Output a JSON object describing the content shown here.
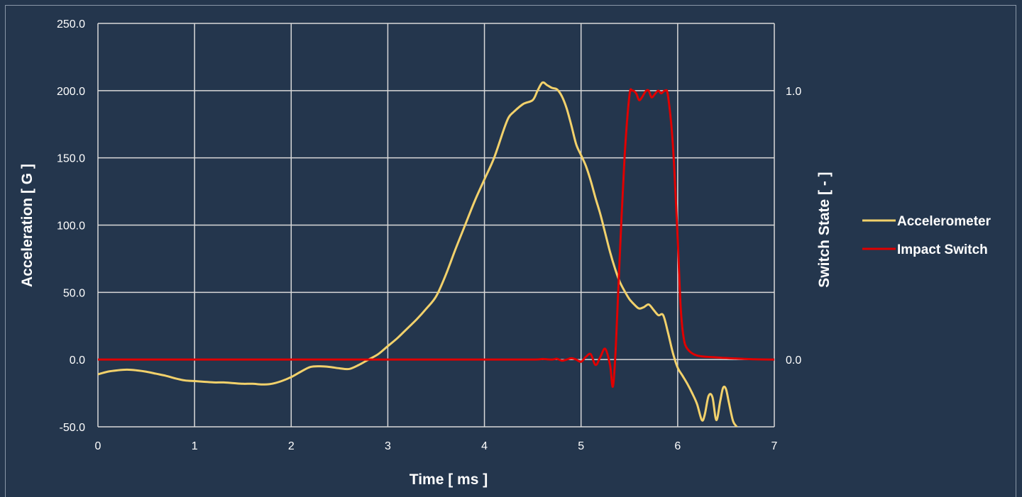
{
  "colors": {
    "background": "#24364d",
    "grid": "#d9d9d9",
    "text": "#ffffff",
    "accelerometer": "#f2d16b",
    "impact_switch": "#e00000"
  },
  "chart_data": {
    "type": "line",
    "title": "",
    "xlabel": "Time [ ms ]",
    "ylabel": "Acceleration [ G ]",
    "y2label": "Switch State [ - ]",
    "xlim": [
      0,
      7
    ],
    "ylim": [
      -50,
      250
    ],
    "y2lim": [
      0,
      1
    ],
    "x_ticks": [
      0,
      1,
      2,
      3,
      4,
      5,
      6,
      7
    ],
    "x_tick_labels": [
      "0",
      "1",
      "2",
      "3",
      "4",
      "5",
      "6",
      "7"
    ],
    "y_ticks": [
      -50,
      0,
      50,
      100,
      150,
      200,
      250
    ],
    "y_tick_labels": [
      "-50.0",
      "0.0",
      "50.0",
      "100.0",
      "150.0",
      "200.0",
      "250.0"
    ],
    "y2_ticks": [
      0,
      1
    ],
    "y2_tick_labels": [
      "0.0",
      "1.0"
    ],
    "grid": true,
    "legend_position": "right",
    "series": [
      {
        "name": "Accelerometer",
        "axis": "left",
        "x": [
          0,
          0.1,
          0.2,
          0.3,
          0.4,
          0.5,
          0.6,
          0.7,
          0.8,
          0.9,
          1.0,
          1.1,
          1.2,
          1.3,
          1.4,
          1.5,
          1.6,
          1.7,
          1.8,
          1.9,
          2.0,
          2.1,
          2.2,
          2.3,
          2.4,
          2.5,
          2.6,
          2.7,
          2.8,
          2.9,
          3.0,
          3.1,
          3.2,
          3.3,
          3.4,
          3.5,
          3.6,
          3.7,
          3.8,
          3.9,
          4.0,
          4.1,
          4.2,
          4.25,
          4.3,
          4.4,
          4.5,
          4.55,
          4.6,
          4.65,
          4.7,
          4.75,
          4.8,
          4.85,
          4.9,
          4.95,
          5.0,
          5.05,
          5.1,
          5.15,
          5.2,
          5.25,
          5.3,
          5.35,
          5.4,
          5.45,
          5.5,
          5.55,
          5.6,
          5.65,
          5.7,
          5.75,
          5.8,
          5.85,
          5.9,
          5.95,
          6.0,
          6.05,
          6.1,
          6.15,
          6.2,
          6.25,
          6.28,
          6.32,
          6.36,
          6.4,
          6.44,
          6.47,
          6.5,
          6.53,
          6.57,
          6.6,
          6.64
        ],
        "y": [
          -11,
          -9,
          -8,
          -7.5,
          -8,
          -9,
          -10.5,
          -12,
          -14,
          -15.5,
          -16,
          -16.5,
          -17,
          -17,
          -17.5,
          -18,
          -18,
          -18.5,
          -18,
          -16,
          -13,
          -9,
          -5.5,
          -5,
          -5.5,
          -6.5,
          -7,
          -4,
          0,
          4,
          10,
          16,
          23,
          30,
          38,
          47,
          63,
          82,
          100,
          118,
          134,
          150,
          171,
          180,
          184,
          190,
          193,
          200,
          206,
          204,
          202,
          201,
          196,
          187,
          174,
          160,
          152,
          144,
          133,
          120,
          108,
          94,
          80,
          68,
          58,
          51,
          45,
          41,
          38,
          39,
          41,
          37,
          33,
          33,
          20,
          5,
          -6,
          -12,
          -18,
          -25,
          -33,
          -45,
          -41,
          -27,
          -28,
          -45,
          -31,
          -21,
          -22,
          -32,
          -45,
          -49,
          -52
        ]
      },
      {
        "name": "Impact Switch",
        "axis": "right",
        "x": [
          0,
          1,
          2,
          3,
          4,
          4.5,
          4.6,
          4.7,
          4.75,
          4.8,
          4.85,
          4.9,
          4.95,
          5.0,
          5.05,
          5.1,
          5.15,
          5.2,
          5.25,
          5.3,
          5.33,
          5.36,
          5.4,
          5.45,
          5.5,
          5.53,
          5.57,
          5.6,
          5.63,
          5.67,
          5.7,
          5.73,
          5.77,
          5.8,
          5.83,
          5.87,
          5.9,
          5.95,
          6.0,
          6.03,
          6.06,
          6.1,
          6.2,
          6.4,
          6.6,
          6.8,
          7.0
        ],
        "y": [
          0,
          0,
          0,
          0,
          0,
          0,
          0.002,
          0,
          0.003,
          -0.004,
          0,
          0.005,
          0,
          -0.008,
          0.01,
          0.02,
          -0.02,
          0.01,
          0.04,
          -0.02,
          -0.1,
          0.05,
          0.38,
          0.75,
          0.98,
          1.0,
          0.99,
          0.965,
          0.975,
          0.998,
          1.0,
          0.975,
          0.99,
          1.0,
          0.99,
          1.0,
          0.98,
          0.8,
          0.45,
          0.2,
          0.085,
          0.04,
          0.015,
          0.008,
          0.004,
          0.001,
          0
        ]
      }
    ]
  }
}
